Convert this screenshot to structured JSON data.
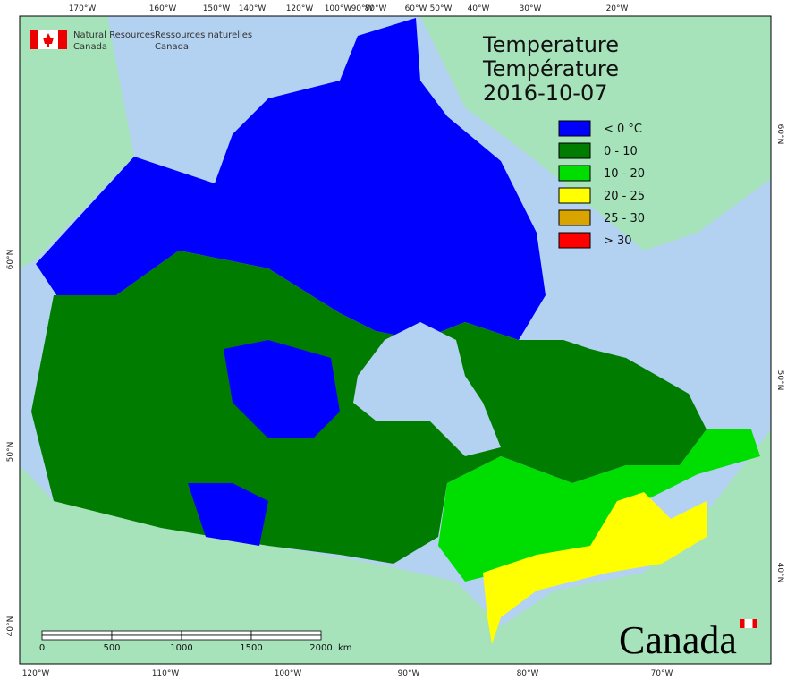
{
  "header": {
    "agency_en": [
      "Natural Resources",
      "Canada"
    ],
    "agency_fr": [
      "Ressources naturelles",
      "Canada"
    ]
  },
  "title": [
    "Temperature",
    "Température",
    "2016-10-07"
  ],
  "legend": [
    {
      "label": "< 0 °C",
      "color": "#0000ff"
    },
    {
      "label": "0 - 10",
      "color": "#007d00"
    },
    {
      "label": "10 - 20",
      "color": "#00dd00"
    },
    {
      "label": "20 - 25",
      "color": "#ffff00"
    },
    {
      "label": "25 - 30",
      "color": "#d9a300"
    },
    {
      "label": "> 30",
      "color": "#ff0000"
    }
  ],
  "graticule": {
    "top": [
      "170°W",
      "160°W",
      "150°W",
      "140°W",
      "120°W",
      "100°W",
      "90°W",
      "80°W",
      "60°W",
      "50°W",
      "40°W",
      "30°W",
      "20°W"
    ],
    "bottom": [
      "120°W",
      "110°W",
      "100°W",
      "90°W",
      "80°W",
      "70°W"
    ],
    "left": [
      "60°N",
      "50°N",
      "40°N"
    ],
    "right": [
      "60°N",
      "50°N",
      "40°N"
    ]
  },
  "scale_bar": {
    "labels": [
      "0",
      "500",
      "1000",
      "1500",
      "2000"
    ],
    "unit": "km"
  },
  "wordmark": "Canada"
}
